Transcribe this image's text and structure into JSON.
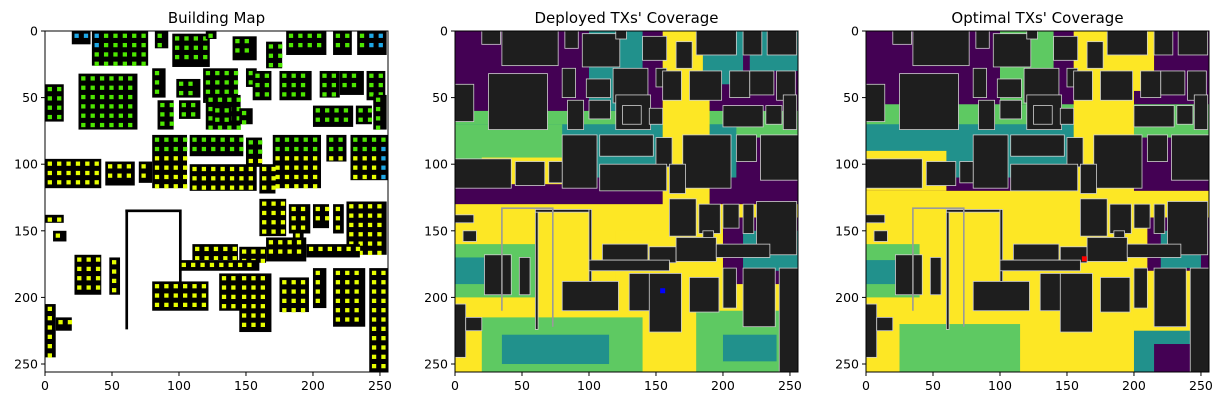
{
  "figure": {
    "colors": {
      "viridis_dark": "#440154",
      "viridis_blue": "#21918c",
      "viridis_green": "#5ec962",
      "viridis_yellow": "#fde725",
      "building_dark": "#1e1e1e",
      "building_outline": "#d0d0d0",
      "map_building": "#000000",
      "map_tx_yellow": "#e6ff00",
      "map_tx_green": "#4ce600",
      "map_tx_blue": "#1fa8e6",
      "deployed_tx_marker": "#0000ff",
      "optimal_tx_marker": "#ff0000"
    }
  },
  "chart_data": [
    {
      "type": "heatmap",
      "title": "Building Map",
      "xlim": [
        0,
        256
      ],
      "ylim": [
        256,
        0
      ],
      "xticks": [
        "0",
        "50",
        "100",
        "150",
        "200",
        "250"
      ],
      "yticks": [
        "0",
        "50",
        "100",
        "150",
        "200",
        "250"
      ],
      "grid": false,
      "description_values": {
        "tx_colors": [
          "yellow",
          "green",
          "blue"
        ]
      }
    },
    {
      "type": "heatmap",
      "title": "Deployed TXs' Coverage",
      "xlim": [
        0,
        256
      ],
      "ylim": [
        256,
        0
      ],
      "xticks": [
        "0",
        "50",
        "100",
        "150",
        "200",
        "250"
      ],
      "yticks": [
        "0",
        "50",
        "100",
        "150",
        "200",
        "250"
      ],
      "grid": false,
      "tx_marker": {
        "x": 155,
        "y": 195
      }
    },
    {
      "type": "heatmap",
      "title": "Optimal TXs' Coverage",
      "xlim": [
        0,
        256
      ],
      "ylim": [
        256,
        0
      ],
      "xticks": [
        "0",
        "50",
        "100",
        "150",
        "200",
        "250"
      ],
      "yticks": [
        "0",
        "50",
        "100",
        "150",
        "200",
        "250"
      ],
      "grid": false,
      "tx_marker": {
        "x": 163,
        "y": 171
      }
    }
  ]
}
